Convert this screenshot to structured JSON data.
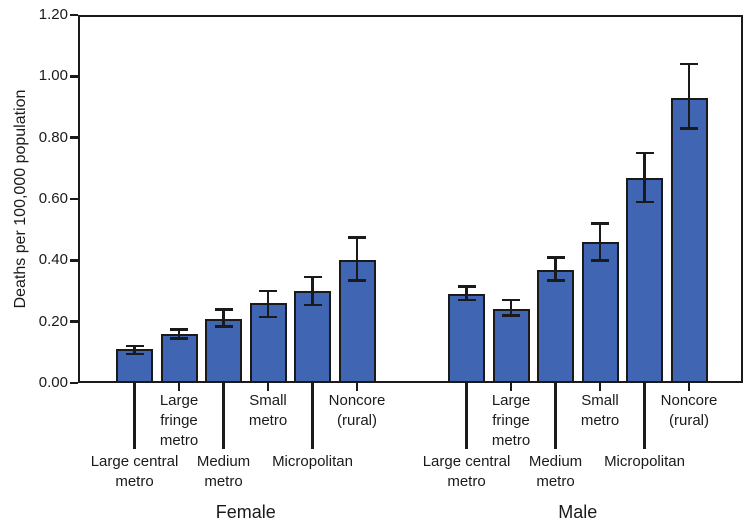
{
  "chart_data": {
    "type": "bar",
    "title": "",
    "ylabel": "Deaths per 100,000 population",
    "xlabel": "",
    "ylim": [
      0,
      1.2
    ],
    "yticks": [
      0,
      0.2,
      0.4,
      0.6,
      0.8,
      1.0,
      1.2
    ],
    "ytick_labels": [
      "0.00",
      "0.20",
      "0.40",
      "0.60",
      "0.80",
      "1.00",
      "1.20"
    ],
    "grid": false,
    "legend": "none",
    "error_bars": true,
    "categories": [
      "Large central metro",
      "Large fringe metro",
      "Medium metro",
      "Small metro",
      "Micropolitan",
      "Noncore (rural)"
    ],
    "category_display": [
      "Large central\nmetro",
      "Large\nfringe\nmetro",
      "Medium\nmetro",
      "Small\nmetro",
      "Micropolitan",
      "Noncore\n(rural)"
    ],
    "category_label_row": [
      "lower",
      "upper",
      "lower",
      "upper",
      "lower",
      "upper"
    ],
    "groups": [
      {
        "name": "Female",
        "values": [
          0.11,
          0.16,
          0.21,
          0.26,
          0.3,
          0.4
        ],
        "error_low": [
          0.095,
          0.145,
          0.185,
          0.215,
          0.255,
          0.335
        ],
        "error_high": [
          0.12,
          0.175,
          0.24,
          0.3,
          0.345,
          0.475
        ]
      },
      {
        "name": "Male",
        "values": [
          0.29,
          0.24,
          0.37,
          0.46,
          0.67,
          0.93
        ],
        "error_low": [
          0.27,
          0.22,
          0.335,
          0.4,
          0.59,
          0.83
        ],
        "error_high": [
          0.315,
          0.27,
          0.41,
          0.52,
          0.75,
          1.04
        ]
      }
    ],
    "bar_color": "#4066B3",
    "axis_color": "#1a1a1a"
  }
}
